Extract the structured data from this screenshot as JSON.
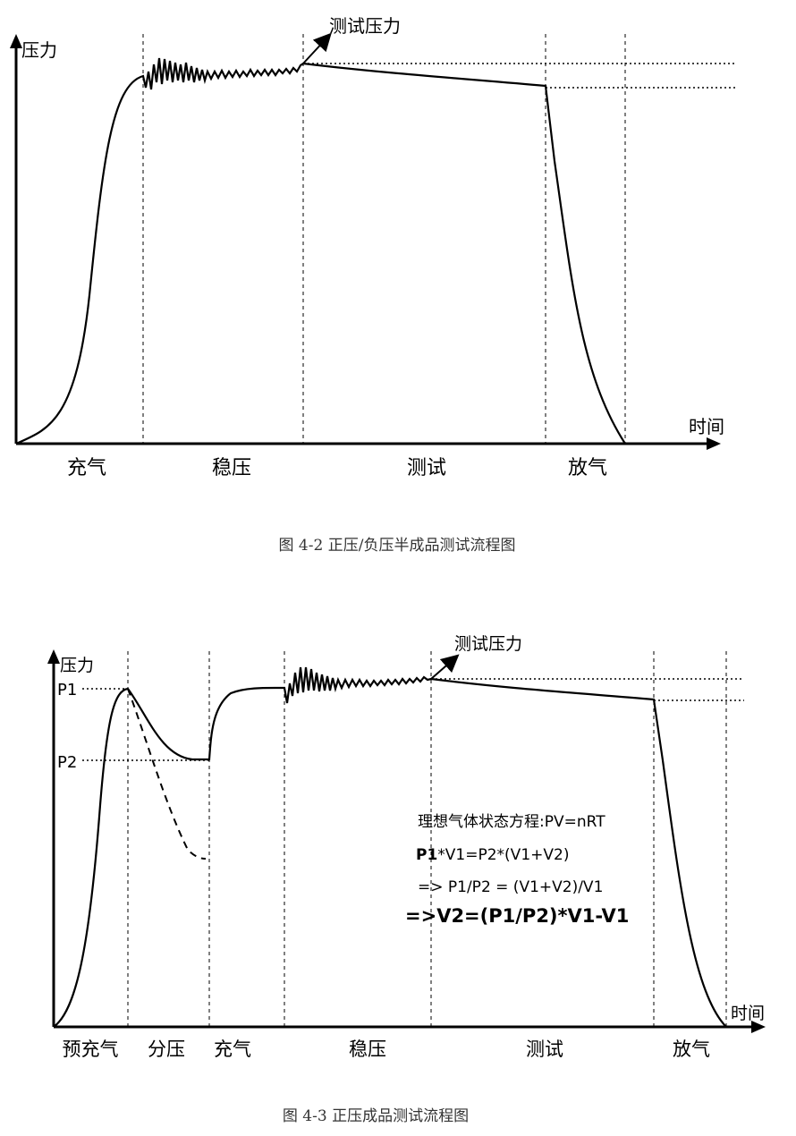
{
  "fig1": {
    "y_axis_label": "压力",
    "x_axis_label": "时间",
    "annotation": "测试压力",
    "phases": [
      "充气",
      "稳压",
      "测试",
      "放气"
    ],
    "caption": "图 4-2 正压/负压半成品测试流程图"
  },
  "fig2": {
    "y_axis_label": "压力",
    "x_axis_label": "时间",
    "annotation": "测试压力",
    "p1_label": "P1",
    "p2_label": "P2",
    "phases": [
      "预充气",
      "分压",
      "充气",
      "稳压",
      "测试",
      "放气"
    ],
    "formula_line1": "理想气体状态方程:PV=nRT",
    "formula_line2_p1": "P1",
    "formula_line2_rest": "*V1=P2*(V1+V2)",
    "formula_line3": "=> P1/P2 = (V1+V2)/V1",
    "formula_line4": "=>V2=(P1/P2)*V1-V1",
    "caption": "图 4-3 正压成品测试流程图"
  }
}
